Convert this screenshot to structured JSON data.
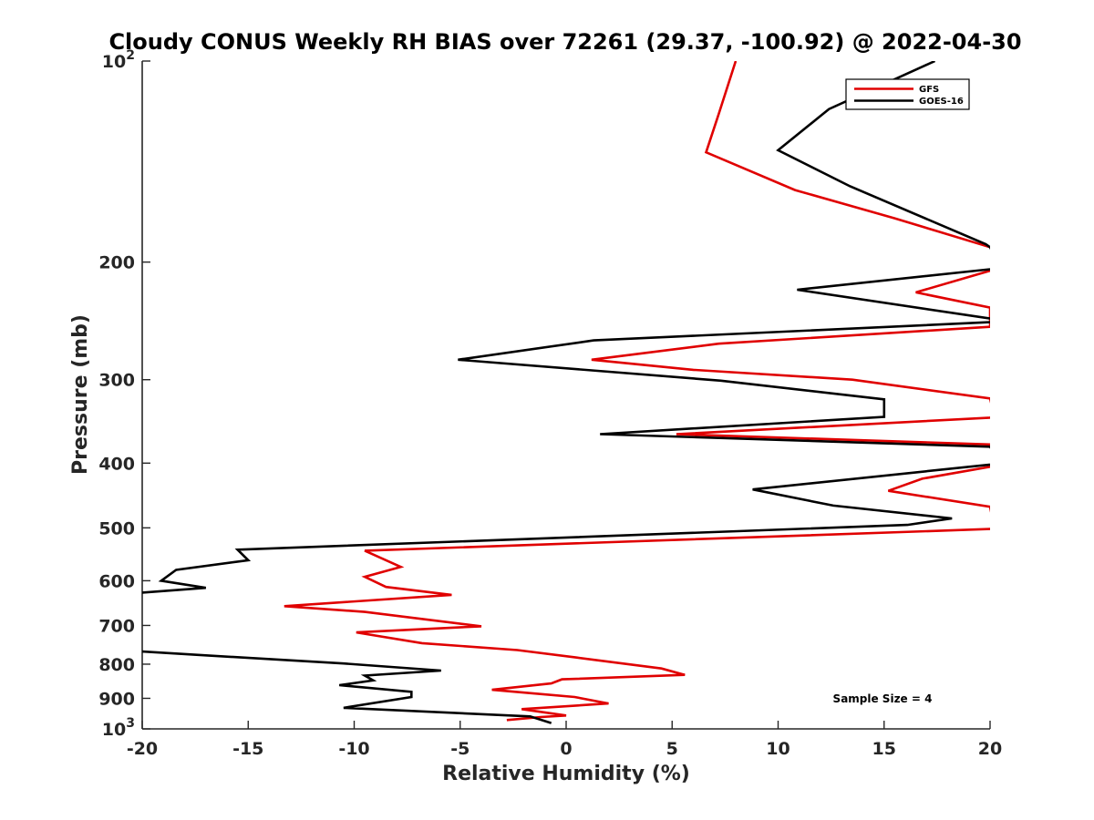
{
  "chart_data": {
    "type": "line",
    "title": "Cloudy CONUS Weekly RH BIAS over 72261 (29.37, -100.92) @ 2022-04-30",
    "xlabel": "Relative Humidity (%)",
    "ylabel": "Pressure (mb)",
    "xlim": [
      -20,
      20
    ],
    "ylim": [
      100,
      1000
    ],
    "y_scale": "log",
    "y_reversed": true,
    "xticks": [
      -20,
      -15,
      -10,
      -5,
      0,
      5,
      10,
      15,
      20
    ],
    "xtick_labels": [
      "-20",
      "-15",
      "-10",
      "-5",
      "0",
      "5",
      "10",
      "15",
      "20"
    ],
    "yticks": [
      100,
      200,
      300,
      400,
      500,
      600,
      700,
      800,
      900,
      1000
    ],
    "ytick_labels": [
      {
        "base": "10",
        "exp": "2"
      },
      {
        "base": "200"
      },
      {
        "base": "300"
      },
      {
        "base": "400"
      },
      {
        "base": "500"
      },
      {
        "base": "600"
      },
      {
        "base": "700"
      },
      {
        "base": "800"
      },
      {
        "base": "900"
      },
      {
        "base": "10",
        "exp": "3"
      }
    ],
    "grid": false,
    "legend_position": "top-right",
    "annotation": "Sample Size = 4",
    "series": [
      {
        "name": "GFS",
        "color": "#e00000",
        "points": [
          [
            8.0,
            100
          ],
          [
            7.2,
            120
          ],
          [
            6.6,
            137
          ],
          [
            10.8,
            156
          ],
          [
            15.5,
            172
          ],
          [
            20,
            190
          ],
          [
            20.5,
            201
          ],
          [
            20,
            206
          ],
          [
            16.5,
            222
          ],
          [
            20,
            234
          ],
          [
            20,
            250
          ],
          [
            7.2,
            265
          ],
          [
            1.2,
            280
          ],
          [
            6.0,
            290
          ],
          [
            13.5,
            300
          ],
          [
            20,
            320
          ],
          [
            20.2,
            340
          ],
          [
            20,
            342
          ],
          [
            5.2,
            362
          ],
          [
            20,
            375
          ],
          [
            20.3,
            400
          ],
          [
            20,
            405
          ],
          [
            16.8,
            422
          ],
          [
            15.2,
            440
          ],
          [
            20,
            465
          ],
          [
            20.2,
            500
          ],
          [
            20,
            502
          ],
          [
            -9.5,
            541
          ],
          [
            -7.8,
            572
          ],
          [
            -9.5,
            592
          ],
          [
            -8.5,
            613
          ],
          [
            -5.4,
            630
          ],
          [
            -13.3,
            655
          ],
          [
            -9.5,
            668
          ],
          [
            -4.0,
            702
          ],
          [
            -9.9,
            717
          ],
          [
            -6.8,
            744
          ],
          [
            -2.3,
            762
          ],
          [
            0.5,
            782
          ],
          [
            4.5,
            812
          ],
          [
            5.6,
            830
          ],
          [
            -0.2,
            843
          ],
          [
            -0.7,
            855
          ],
          [
            -3.5,
            874
          ],
          [
            0.4,
            896
          ],
          [
            2.0,
            916
          ],
          [
            -2.1,
            934
          ],
          [
            0.0,
            955
          ],
          [
            -1.2,
            960
          ],
          [
            -2.8,
            970
          ]
        ]
      },
      {
        "name": "GOES-16",
        "color": "#000000",
        "points": [
          [
            17.4,
            100
          ],
          [
            12.4,
            118
          ],
          [
            10.0,
            136
          ],
          [
            13.4,
            154
          ],
          [
            19.8,
            188
          ],
          [
            20,
            190
          ],
          [
            20.5,
            204
          ],
          [
            20,
            205
          ],
          [
            10.9,
            220
          ],
          [
            20,
            243
          ],
          [
            20.5,
            245
          ],
          [
            20,
            246
          ],
          [
            1.3,
            262
          ],
          [
            -5.1,
            280
          ],
          [
            7.3,
            301
          ],
          [
            15.0,
            321
          ],
          [
            15.0,
            341
          ],
          [
            1.6,
            362
          ],
          [
            20,
            378
          ],
          [
            20.5,
            400
          ],
          [
            20,
            402
          ],
          [
            8.8,
            438
          ],
          [
            12.6,
            463
          ],
          [
            18.2,
            484
          ],
          [
            16.1,
            495
          ],
          [
            -2.1,
            520
          ],
          [
            -15.5,
            539
          ],
          [
            -15.0,
            559
          ],
          [
            -18.4,
            578
          ],
          [
            -19.1,
            600
          ],
          [
            -17.0,
            615
          ],
          [
            -20,
            625
          ],
          [
            -20.5,
            628
          ],
          [
            -20.5,
            765
          ],
          [
            -20,
            766
          ],
          [
            -17.0,
            776
          ],
          [
            -10.5,
            798
          ],
          [
            -5.9,
            818
          ],
          [
            -9.5,
            832
          ],
          [
            -9.1,
            846
          ],
          [
            -10.7,
            860
          ],
          [
            -7.3,
            880
          ],
          [
            -7.3,
            896
          ],
          [
            -10.5,
            930
          ],
          [
            -1.7,
            958
          ],
          [
            -0.7,
            980
          ]
        ]
      }
    ]
  }
}
